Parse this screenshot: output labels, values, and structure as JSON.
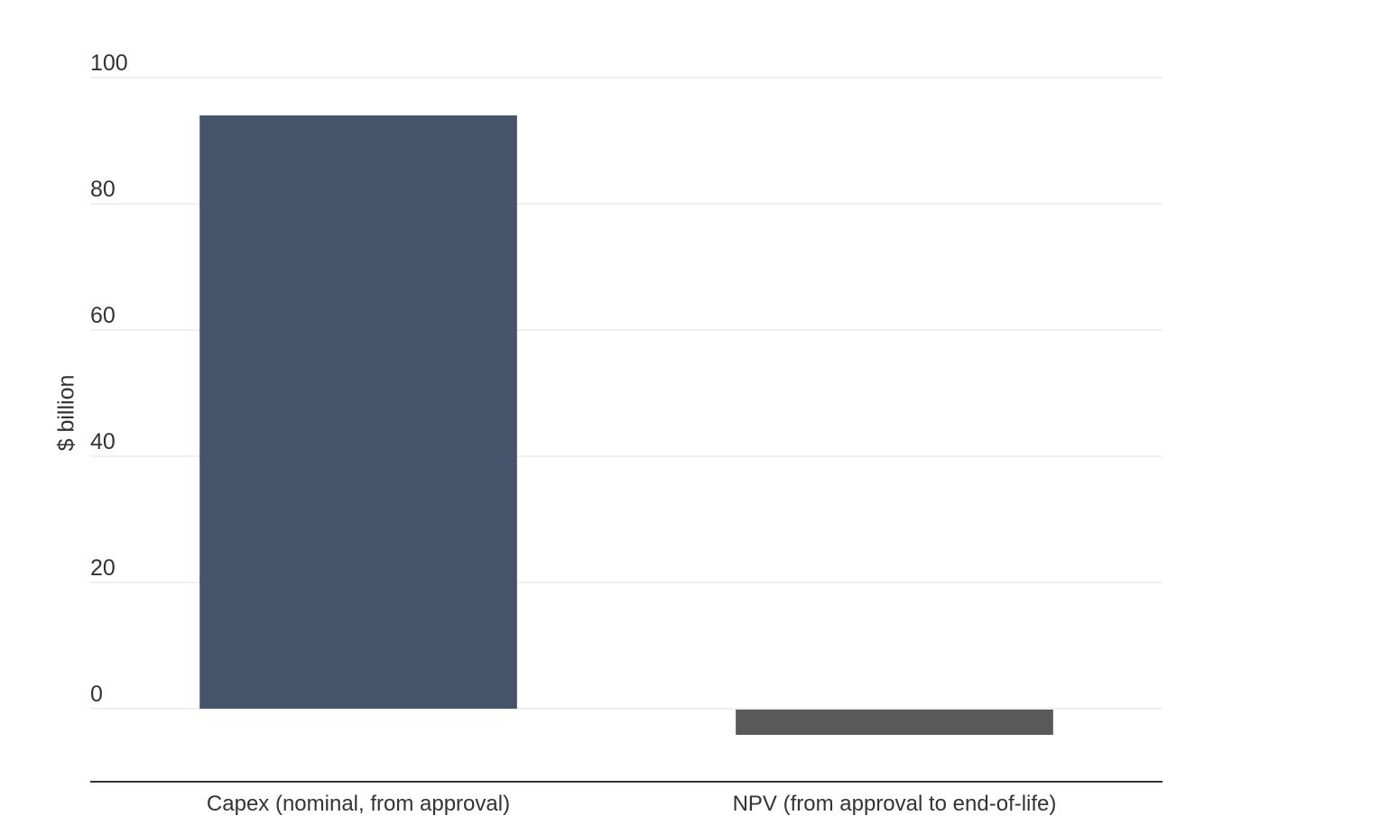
{
  "chart_data": {
    "type": "bar",
    "title": "",
    "xlabel": "",
    "ylabel": "$ billion",
    "ylim": [
      -11.5,
      100
    ],
    "yticks": [
      0,
      20,
      40,
      60,
      80,
      100
    ],
    "grid": true,
    "legend": "none",
    "categories": [
      "Capex (nominal, from approval)",
      "NPV (from approval to end-of-life)"
    ],
    "values": [
      94,
      -4
    ],
    "colors": [
      "#455468",
      "#595959"
    ]
  }
}
